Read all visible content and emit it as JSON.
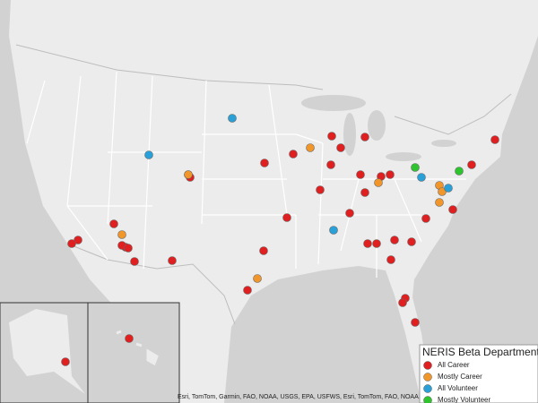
{
  "legend": {
    "title": "NERIS Beta Departments",
    "items": [
      {
        "label": "All Career",
        "color": "#e02020"
      },
      {
        "label": "Mostly Career",
        "color": "#f0962a"
      },
      {
        "label": "All Volunteer",
        "color": "#2aa0d8"
      },
      {
        "label": "Mostly Volunteer",
        "color": "#2ec42e"
      }
    ]
  },
  "attribution": "Esri, TomTom, Garmin, FAO, NOAA, USGS, EPA, USFWS, Esri, TomTom, FAO, NOAA, USGS"
}
